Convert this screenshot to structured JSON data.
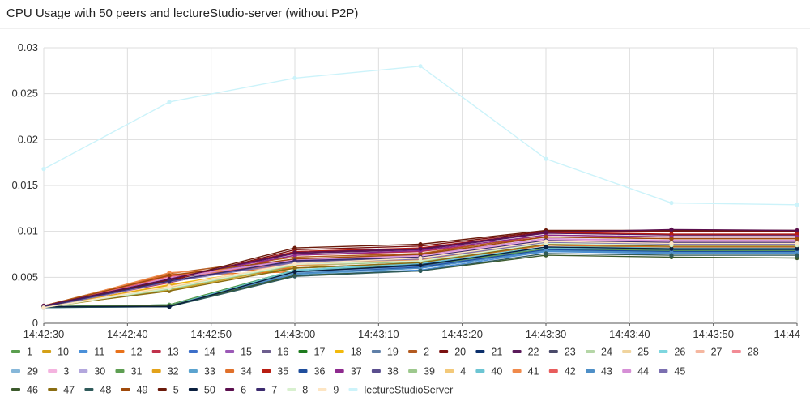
{
  "chart_data": {
    "type": "line",
    "title": "CPU Usage with 50 peers and lectureStudio-server (without P2P)",
    "xlabel": "",
    "ylabel": "",
    "x": [
      "14:42:30",
      "14:42:45",
      "14:43:00",
      "14:43:15",
      "14:43:30",
      "14:43:45",
      "14:44:00"
    ],
    "x_ticks": [
      "14:42:30",
      "14:42:40",
      "14:42:50",
      "14:43:00",
      "14:43:10",
      "14:43:20",
      "14:43:30",
      "14:43:40",
      "14:43:50",
      "14:44"
    ],
    "y_ticks": [
      "0",
      "0.005",
      "0.01",
      "0.015",
      "0.02",
      "0.025",
      "0.03"
    ],
    "ylim": [
      0,
      0.03
    ],
    "grid": true,
    "legend_position": "bottom",
    "series": [
      {
        "name": "1",
        "color": "#5a9e4f",
        "values": [
          0.0018,
          0.004,
          0.006,
          0.0065,
          0.0085,
          0.0082,
          0.0082
        ]
      },
      {
        "name": "10",
        "color": "#d4a017",
        "values": [
          0.0017,
          0.0036,
          0.0062,
          0.0068,
          0.009,
          0.0088,
          0.0088
        ]
      },
      {
        "name": "11",
        "color": "#4a90d9",
        "values": [
          0.0018,
          0.002,
          0.0052,
          0.0058,
          0.0078,
          0.0076,
          0.0076
        ]
      },
      {
        "name": "12",
        "color": "#e8711a",
        "values": [
          0.0019,
          0.0052,
          0.0056,
          0.0062,
          0.0082,
          0.008,
          0.008
        ]
      },
      {
        "name": "13",
        "color": "#c0314b",
        "values": [
          0.0018,
          0.0044,
          0.0074,
          0.0078,
          0.0094,
          0.0092,
          0.0092
        ]
      },
      {
        "name": "14",
        "color": "#3c6fc9",
        "values": [
          0.0018,
          0.0018,
          0.0055,
          0.0062,
          0.008,
          0.0078,
          0.0078
        ]
      },
      {
        "name": "15",
        "color": "#9b59b6",
        "values": [
          0.0019,
          0.005,
          0.007,
          0.0074,
          0.0092,
          0.009,
          0.009
        ]
      },
      {
        "name": "16",
        "color": "#6d5e8e",
        "values": [
          0.0018,
          0.0048,
          0.0068,
          0.0072,
          0.009,
          0.0088,
          0.0088
        ]
      },
      {
        "name": "17",
        "color": "#1e7b1e",
        "values": [
          0.0018,
          0.002,
          0.0058,
          0.0064,
          0.0082,
          0.0078,
          0.0077
        ]
      },
      {
        "name": "18",
        "color": "#f2b90c",
        "values": [
          0.0017,
          0.0042,
          0.0063,
          0.007,
          0.0088,
          0.0086,
          0.0086
        ]
      },
      {
        "name": "19",
        "color": "#5f7fa8",
        "values": [
          0.0018,
          0.0019,
          0.0054,
          0.006,
          0.0079,
          0.0077,
          0.0077
        ]
      },
      {
        "name": "2",
        "color": "#b35a1f",
        "values": [
          0.0019,
          0.0054,
          0.0072,
          0.0076,
          0.0096,
          0.0094,
          0.0094
        ]
      },
      {
        "name": "20",
        "color": "#7a1010",
        "values": [
          0.0018,
          0.0046,
          0.008,
          0.0084,
          0.01,
          0.01,
          0.01
        ]
      },
      {
        "name": "21",
        "color": "#0b2f6b",
        "values": [
          0.0018,
          0.0018,
          0.0056,
          0.0064,
          0.0082,
          0.008,
          0.008
        ]
      },
      {
        "name": "22",
        "color": "#5a1a5a",
        "values": [
          0.0019,
          0.0048,
          0.0076,
          0.008,
          0.0098,
          0.0096,
          0.0096
        ]
      },
      {
        "name": "23",
        "color": "#4a4a6a",
        "values": [
          0.0018,
          0.0046,
          0.0066,
          0.007,
          0.0088,
          0.0086,
          0.0086
        ]
      },
      {
        "name": "24",
        "color": "#b5d6a7",
        "values": [
          0.0017,
          0.0038,
          0.0064,
          0.0068,
          0.0087,
          0.0085,
          0.0085
        ]
      },
      {
        "name": "25",
        "color": "#f0d49e",
        "values": [
          0.0017,
          0.004,
          0.0065,
          0.0071,
          0.0089,
          0.0087,
          0.0087
        ]
      },
      {
        "name": "26",
        "color": "#7ed6df",
        "values": [
          0.0017,
          0.0019,
          0.0058,
          0.0066,
          0.0083,
          0.0082,
          0.0082
        ]
      },
      {
        "name": "27",
        "color": "#f5b7a0",
        "values": [
          0.0018,
          0.0052,
          0.0062,
          0.0068,
          0.0086,
          0.0084,
          0.0084
        ]
      },
      {
        "name": "28",
        "color": "#f28b95",
        "values": [
          0.0018,
          0.005,
          0.0064,
          0.007,
          0.0088,
          0.0086,
          0.0086
        ]
      },
      {
        "name": "29",
        "color": "#86b7d9",
        "values": [
          0.0017,
          0.0019,
          0.0055,
          0.0061,
          0.008,
          0.0078,
          0.0078
        ]
      },
      {
        "name": "3",
        "color": "#f4b3df",
        "values": [
          0.0018,
          0.005,
          0.0068,
          0.0073,
          0.0091,
          0.0089,
          0.0089
        ]
      },
      {
        "name": "30",
        "color": "#b3a7dd",
        "values": [
          0.0017,
          0.0046,
          0.0066,
          0.0071,
          0.0089,
          0.0087,
          0.0087
        ]
      },
      {
        "name": "31",
        "color": "#5e9e52",
        "values": [
          0.0018,
          0.002,
          0.0057,
          0.0063,
          0.0081,
          0.0079,
          0.0079
        ]
      },
      {
        "name": "32",
        "color": "#e3a21a",
        "values": [
          0.0018,
          0.0041,
          0.0062,
          0.0069,
          0.0088,
          0.0086,
          0.0086
        ]
      },
      {
        "name": "33",
        "color": "#5ba3cf",
        "values": [
          0.0017,
          0.0018,
          0.0053,
          0.006,
          0.0079,
          0.0077,
          0.0077
        ]
      },
      {
        "name": "34",
        "color": "#e0702a",
        "values": [
          0.0019,
          0.0053,
          0.006,
          0.0066,
          0.0085,
          0.0083,
          0.0083
        ]
      },
      {
        "name": "35",
        "color": "#b81d12",
        "values": [
          0.0018,
          0.0047,
          0.0078,
          0.0082,
          0.0099,
          0.0097,
          0.0097
        ]
      },
      {
        "name": "36",
        "color": "#1f4e9c",
        "values": [
          0.0018,
          0.0018,
          0.0054,
          0.0061,
          0.008,
          0.0078,
          0.0078
        ]
      },
      {
        "name": "37",
        "color": "#8e2a8e",
        "values": [
          0.0019,
          0.0049,
          0.0074,
          0.0079,
          0.0096,
          0.0094,
          0.0094
        ]
      },
      {
        "name": "38",
        "color": "#5a4e8e",
        "values": [
          0.0018,
          0.0045,
          0.0067,
          0.0071,
          0.0089,
          0.0087,
          0.0087
        ]
      },
      {
        "name": "39",
        "color": "#9dc88d",
        "values": [
          0.0017,
          0.0037,
          0.0063,
          0.0067,
          0.0086,
          0.0084,
          0.0084
        ]
      },
      {
        "name": "4",
        "color": "#f3c97a",
        "values": [
          0.0017,
          0.0039,
          0.0064,
          0.007,
          0.0088,
          0.0086,
          0.0086
        ]
      },
      {
        "name": "40",
        "color": "#6cc5d3",
        "values": [
          0.0017,
          0.0019,
          0.0057,
          0.0065,
          0.0082,
          0.0081,
          0.0081
        ]
      },
      {
        "name": "41",
        "color": "#f08a4b",
        "values": [
          0.0018,
          0.0055,
          0.0063,
          0.0069,
          0.0087,
          0.0085,
          0.0085
        ]
      },
      {
        "name": "42",
        "color": "#e85c5c",
        "values": [
          0.0018,
          0.0051,
          0.0065,
          0.0071,
          0.0089,
          0.0087,
          0.0087
        ]
      },
      {
        "name": "43",
        "color": "#4e8fc7",
        "values": [
          0.0017,
          0.0019,
          0.0054,
          0.006,
          0.0079,
          0.0077,
          0.0077
        ]
      },
      {
        "name": "44",
        "color": "#d68fd6",
        "values": [
          0.0018,
          0.0049,
          0.0069,
          0.0074,
          0.0092,
          0.009,
          0.009
        ]
      },
      {
        "name": "45",
        "color": "#7b6fb0",
        "values": [
          0.0017,
          0.0045,
          0.0066,
          0.007,
          0.0088,
          0.0086,
          0.0086
        ]
      },
      {
        "name": "46",
        "color": "#3c5a2c",
        "values": [
          0.0018,
          0.0019,
          0.0052,
          0.0057,
          0.0074,
          0.0072,
          0.0071
        ]
      },
      {
        "name": "47",
        "color": "#8a6d12",
        "values": [
          0.0018,
          0.0035,
          0.006,
          0.0066,
          0.0086,
          0.0084,
          0.0084
        ]
      },
      {
        "name": "48",
        "color": "#2f5a5a",
        "values": [
          0.0017,
          0.0018,
          0.0051,
          0.0057,
          0.0076,
          0.0074,
          0.0074
        ]
      },
      {
        "name": "49",
        "color": "#a04a0a",
        "values": [
          0.0019,
          0.0052,
          0.007,
          0.0075,
          0.0094,
          0.0092,
          0.0092
        ]
      },
      {
        "name": "5",
        "color": "#6b1a0a",
        "values": [
          0.0018,
          0.0047,
          0.0082,
          0.0086,
          0.0101,
          0.0101,
          0.0101
        ]
      },
      {
        "name": "50",
        "color": "#0a1f3f",
        "values": [
          0.0018,
          0.0018,
          0.0056,
          0.0063,
          0.0083,
          0.0081,
          0.0081
        ]
      },
      {
        "name": "6",
        "color": "#5b0f4e",
        "values": [
          0.0019,
          0.0048,
          0.0077,
          0.0081,
          0.0099,
          0.0102,
          0.0101
        ]
      },
      {
        "name": "7",
        "color": "#3b2a6e",
        "values": [
          0.0018,
          0.0046,
          0.0068,
          0.0072,
          0.009,
          0.0088,
          0.0088
        ]
      },
      {
        "name": "8",
        "color": "#d8f0cf",
        "values": [
          0.0017,
          0.0038,
          0.0064,
          0.0068,
          0.0087,
          0.0085,
          0.0085
        ]
      },
      {
        "name": "9",
        "color": "#fde5c3",
        "values": [
          0.0017,
          0.004,
          0.0065,
          0.0071,
          0.0089,
          0.0087,
          0.0087
        ]
      },
      {
        "name": "lectureStudioServer",
        "color": "#ccf3fa",
        "values": [
          0.0168,
          0.0241,
          0.0267,
          0.028,
          0.0179,
          0.0131,
          0.0129
        ]
      }
    ]
  }
}
